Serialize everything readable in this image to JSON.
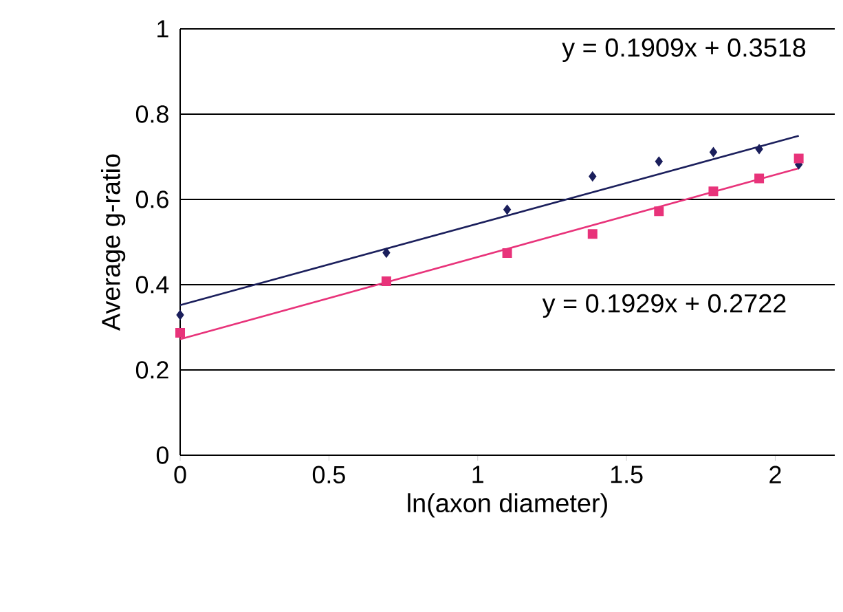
{
  "chart_data": {
    "type": "scatter",
    "xlabel": "ln(axon diameter)",
    "ylabel": "Average g-ratio",
    "xlim": [
      0,
      2.2
    ],
    "ylim": [
      0,
      1
    ],
    "xticks": [
      0,
      0.5,
      1,
      1.5,
      2
    ],
    "yticks": [
      0,
      0.2,
      0.4,
      0.6,
      0.8,
      1
    ],
    "grid": "y",
    "series": [
      {
        "color": "#1b1f5c",
        "marker": "diamond",
        "x": [
          0,
          0.693,
          1.099,
          1.386,
          1.609,
          1.792,
          1.946,
          2.079
        ],
        "values": [
          0.329,
          0.475,
          0.576,
          0.654,
          0.689,
          0.711,
          0.718,
          0.682
        ]
      },
      {
        "color": "#e8337a",
        "marker": "square",
        "x": [
          0,
          0.693,
          1.099,
          1.386,
          1.609,
          1.792,
          1.946,
          2.079
        ],
        "values": [
          0.287,
          0.408,
          0.474,
          0.519,
          0.572,
          0.619,
          0.649,
          0.696
        ]
      },
      {
        "type": "line",
        "color": "#1b1f5c",
        "marker": "none",
        "x": [
          0,
          2.079
        ],
        "values": [
          0.352,
          0.749
        ]
      },
      {
        "type": "line",
        "color": "#e8337a",
        "marker": "none",
        "x": [
          0,
          2.079
        ],
        "values": [
          0.272,
          0.673
        ]
      }
    ],
    "annotations": [
      "y = 0.1909x + 0.3518",
      "y = 0.1929x + 0.2722"
    ]
  }
}
